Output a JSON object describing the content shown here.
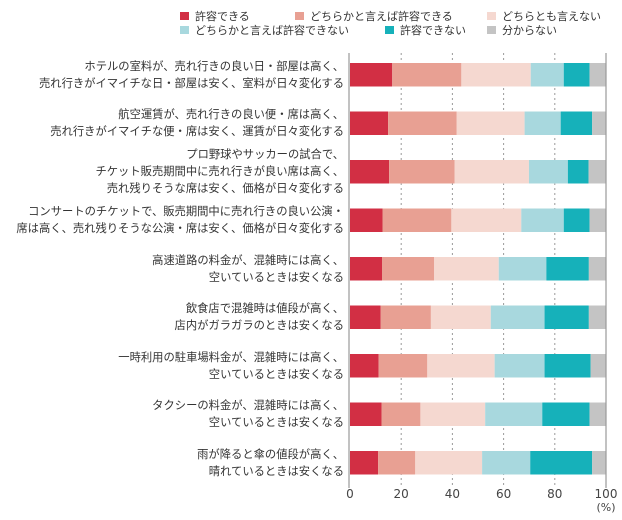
{
  "chart_data": {
    "type": "bar",
    "orientation": "horizontal",
    "stacked": true,
    "categories": [
      [
        "ホテルの室料が、売れ行きの良い日・部屋は高く、",
        "売れ行きがイマイチな日・部屋は安く、室料が日々変化する"
      ],
      [
        "航空運賃が、売れ行きの良い便・席は高く、",
        "売れ行きがイマイチな便・席は安く、運賃が日々変化する"
      ],
      [
        "プロ野球やサッカーの試合で、",
        "チケット販売期間中に売れ行きが良い席は高く、",
        "売れ残りそうな席は安く、価格が日々変化する"
      ],
      [
        "コンサートのチケットで、販売期間中に売れ行きの良い公演・",
        "席は高く、売れ残りそうな公演・席は安く、価格が日々変化する"
      ],
      [
        "高速道路の料金が、混雑時には高く、",
        "空いているときは安くなる"
      ],
      [
        "飲食店で混雑時は値段が高く、",
        "店内がガラガラのときは安くなる"
      ],
      [
        "一時利用の駐車場料金が、混雑時には高く、",
        "空いているときは安くなる"
      ],
      [
        "タクシーの料金が、混雑時には高く、",
        "空いているときは安くなる"
      ],
      [
        "雨が降ると傘の値段が高く、",
        "晴れているときは安くなる"
      ]
    ],
    "series": [
      {
        "name": "許容できる",
        "color": "#D22F44",
        "values": [
          16.5,
          14.9,
          15.3,
          12.7,
          12.5,
          12.0,
          11.2,
          12.3,
          11.0
        ]
      },
      {
        "name": "どちらかと言えば許容できる",
        "color": "#E8A093",
        "values": [
          27.0,
          26.8,
          25.6,
          26.9,
          20.4,
          19.6,
          19.0,
          15.2,
          14.5
        ]
      },
      {
        "name": "どちらとも言えない",
        "color": "#F5D8D0",
        "values": [
          27.1,
          26.5,
          29.0,
          27.3,
          25.2,
          23.4,
          26.3,
          25.3,
          26.1
        ]
      },
      {
        "name": "どちらかと言えば許容できない",
        "color": "#A8D8DE",
        "values": [
          12.9,
          14.1,
          15.2,
          16.6,
          18.6,
          21.0,
          19.5,
          22.3,
          18.8
        ]
      },
      {
        "name": "許容できない",
        "color": "#16B1BA",
        "values": [
          10.1,
          12.3,
          8.1,
          10.1,
          16.6,
          17.3,
          18.0,
          18.5,
          24.2
        ]
      },
      {
        "name": "分からない",
        "color": "#C4C4C4",
        "values": [
          6.4,
          5.4,
          6.8,
          6.4,
          6.7,
          6.7,
          6.0,
          6.4,
          5.4
        ]
      }
    ],
    "xlim": [
      0,
      100
    ],
    "xticks": [
      "0",
      "20",
      "40",
      "60",
      "80",
      "100"
    ],
    "xunit": "(%)",
    "grid": "dotted vertical at 20,40,60,80",
    "legend_position": "top"
  }
}
